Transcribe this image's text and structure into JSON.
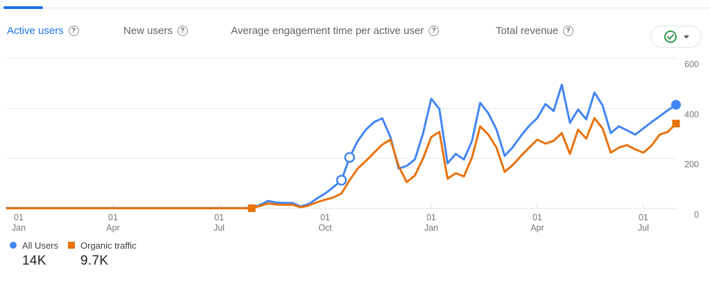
{
  "header": {
    "tabs": [
      {
        "label": "Active users",
        "active": true
      },
      {
        "label": "New users",
        "active": false
      },
      {
        "label": "Average engagement time per active user",
        "active": false
      },
      {
        "label": "Total revenue",
        "active": false
      }
    ],
    "help_glyph": "?",
    "data_quality": {
      "icon": "check-circle-icon",
      "color": "#1e8e3e"
    }
  },
  "colors": {
    "accent": "#1a73e8",
    "all_users": "#4285f4",
    "organic": "#e8710a",
    "grid": "#e6e6e6",
    "axis_text": "#757575"
  },
  "chart_data": {
    "type": "line",
    "x_unit": "week",
    "ylim": [
      0,
      600
    ],
    "y_ticks": [
      0,
      200,
      400,
      600
    ],
    "y_axis_side": "right",
    "grid": true,
    "legend_position": "bottom",
    "x_ticks": [
      {
        "week": 0,
        "day": "01",
        "month": "Jan"
      },
      {
        "week": 13,
        "day": "01",
        "month": "Apr"
      },
      {
        "week": 26,
        "day": "01",
        "month": "Jul"
      },
      {
        "week": 39,
        "day": "01",
        "month": "Oct"
      },
      {
        "week": 52,
        "day": "01",
        "month": "Jan"
      },
      {
        "week": 65,
        "day": "01",
        "month": "Apr"
      },
      {
        "week": 78,
        "day": "01",
        "month": "Jul"
      }
    ],
    "series": [
      {
        "name": "All Users",
        "color": "#4285f4",
        "total": "14K",
        "values": [
          2,
          2,
          2,
          2,
          2,
          2,
          2,
          2,
          2,
          2,
          2,
          2,
          2,
          2,
          2,
          2,
          2,
          2,
          2,
          2,
          2,
          2,
          2,
          2,
          2,
          2,
          2,
          2,
          2,
          2,
          2,
          14,
          30,
          24,
          22,
          22,
          8,
          18,
          40,
          60,
          85,
          113,
          204,
          270,
          315,
          345,
          360,
          285,
          160,
          170,
          196,
          300,
          438,
          397,
          180,
          218,
          196,
          270,
          422,
          380,
          315,
          210,
          245,
          290,
          330,
          361,
          417,
          389,
          494,
          342,
          395,
          356,
          463,
          411,
          301,
          328,
          312,
          295,
          320,
          345,
          368,
          392,
          414
        ]
      },
      {
        "name": "Organic traffic",
        "color": "#e8710a",
        "total": "9.7K",
        "values": [
          1,
          1,
          1,
          1,
          1,
          1,
          1,
          1,
          1,
          1,
          1,
          1,
          1,
          1,
          1,
          1,
          1,
          1,
          1,
          1,
          1,
          1,
          1,
          1,
          1,
          1,
          1,
          1,
          1,
          1,
          1,
          10,
          20,
          16,
          15,
          15,
          5,
          12,
          25,
          35,
          44,
          60,
          113,
          160,
          190,
          223,
          255,
          275,
          170,
          105,
          132,
          200,
          285,
          306,
          119,
          141,
          128,
          204,
          328,
          295,
          243,
          146,
          174,
          210,
          243,
          275,
          259,
          270,
          301,
          218,
          315,
          279,
          361,
          320,
          223,
          243,
          253,
          236,
          223,
          251,
          295,
          306,
          339
        ]
      }
    ],
    "markers": [
      {
        "series": 1,
        "week": 30,
        "shape": "square"
      },
      {
        "series": 0,
        "week": 41,
        "shape": "circle-open"
      },
      {
        "series": 0,
        "week": 42,
        "shape": "circle-open"
      },
      {
        "series": 0,
        "week": 82,
        "shape": "circle"
      },
      {
        "series": 1,
        "week": 82,
        "shape": "square"
      }
    ]
  },
  "legend": {
    "entries": [
      {
        "label": "All Users",
        "value": "14K",
        "color": "#4285f4",
        "marker": "circle"
      },
      {
        "label": "Organic traffic",
        "value": "9.7K",
        "color": "#e8710a",
        "marker": "square"
      }
    ]
  }
}
